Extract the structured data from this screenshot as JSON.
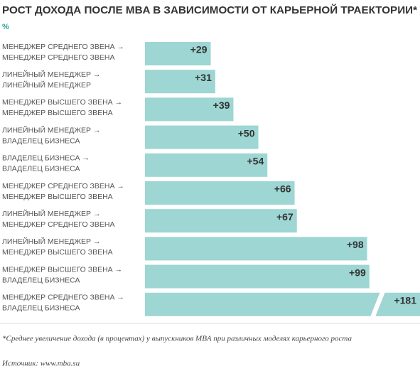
{
  "chart_data": {
    "type": "bar",
    "orientation": "horizontal",
    "title": "РОСТ ДОХОДА ПОСЛЕ MBA В ЗАВИСИМОСТИ ОТ КАРЬЕРНОЙ ТРАЕКТОРИИ*",
    "subtitle": "%",
    "categories": [
      [
        "МЕНЕДЖЕР СРЕДНЕГО ЗВЕНА →",
        "МЕНЕДЖЕР СРЕДНЕГО ЗВЕНА"
      ],
      [
        "ЛИНЕЙНЫЙ МЕНЕДЖЕР →",
        "ЛИНЕЙНЫЙ МЕНЕДЖЕР"
      ],
      [
        "МЕНЕДЖЕР ВЫСШЕГО ЗВЕНА →",
        "МЕНЕДЖЕР ВЫСШЕГО ЗВЕНА"
      ],
      [
        "ЛИНЕЙНЫЙ МЕНЕДЖЕР →",
        "ВЛАДЕЛЕЦ БИЗНЕСА"
      ],
      [
        "ВЛАДЕЛЕЦ БИЗНЕСА →",
        "ВЛАДЕЛЕЦ БИЗНЕСА"
      ],
      [
        "МЕНЕДЖЕР СРЕДНЕГО ЗВЕНА →",
        "МЕНЕДЖЕР ВЫСШЕГО ЗВЕНА"
      ],
      [
        "ЛИНЕЙНЫЙ МЕНЕДЖЕР →",
        "МЕНЕДЖЕР СРЕДНЕГО ЗВЕНА"
      ],
      [
        "ЛИНЕЙНЫЙ МЕНЕДЖЕР →",
        "МЕНЕДЖЕР ВЫСШЕГО ЗВЕНА"
      ],
      [
        "МЕНЕДЖЕР ВЫСШЕГО ЗВЕНА →",
        "ВЛАДЕЛЕЦ БИЗНЕСА"
      ],
      [
        "МЕНЕДЖЕР СРЕДНЕГО ЗВЕНА →",
        "ВЛАДЕЛЕЦ БИЗНЕСА"
      ]
    ],
    "values": [
      29,
      31,
      39,
      50,
      54,
      66,
      67,
      98,
      99,
      181
    ],
    "value_labels": [
      "+29",
      "+31",
      "+39",
      "+50",
      "+54",
      "+66",
      "+67",
      "+98",
      "+99",
      "+181"
    ],
    "color": "#9dd6d3",
    "footnote": "*Среднее увеличение дохода (в процентах) у выпускников MBA при различных моделях карьерного роста",
    "source": "Источник:  www.mba.su"
  }
}
